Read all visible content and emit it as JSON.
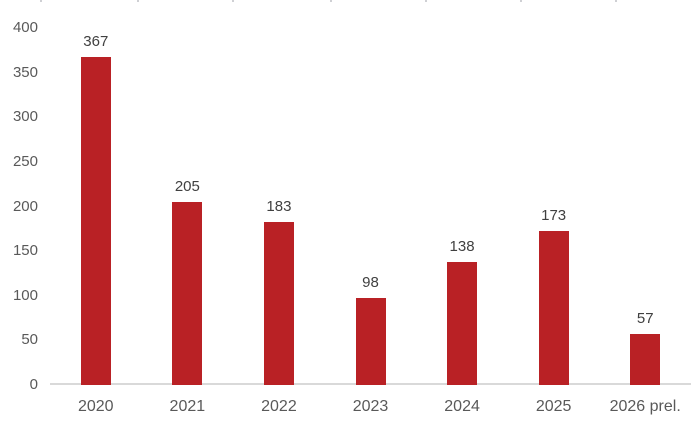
{
  "chart_data": {
    "type": "bar",
    "title": "",
    "xlabel": "",
    "ylabel": "",
    "categories": [
      "2020",
      "2021",
      "2022",
      "2023",
      "2024",
      "2025",
      "2026 prel."
    ],
    "values": [
      367,
      205,
      183,
      98,
      138,
      173,
      57
    ],
    "data_labels": [
      "367",
      "205",
      "183",
      "98",
      "138",
      "173",
      "57"
    ],
    "ylim": [
      0,
      400
    ],
    "yticks": [
      0,
      50,
      100,
      150,
      200,
      250,
      300,
      350,
      400
    ],
    "grid": false,
    "legend": "none",
    "bar_color": "#b92125",
    "axis_line_color": "#d9d9d9",
    "axis_tick_label_color": "#595959",
    "data_label_color": "#404040"
  }
}
